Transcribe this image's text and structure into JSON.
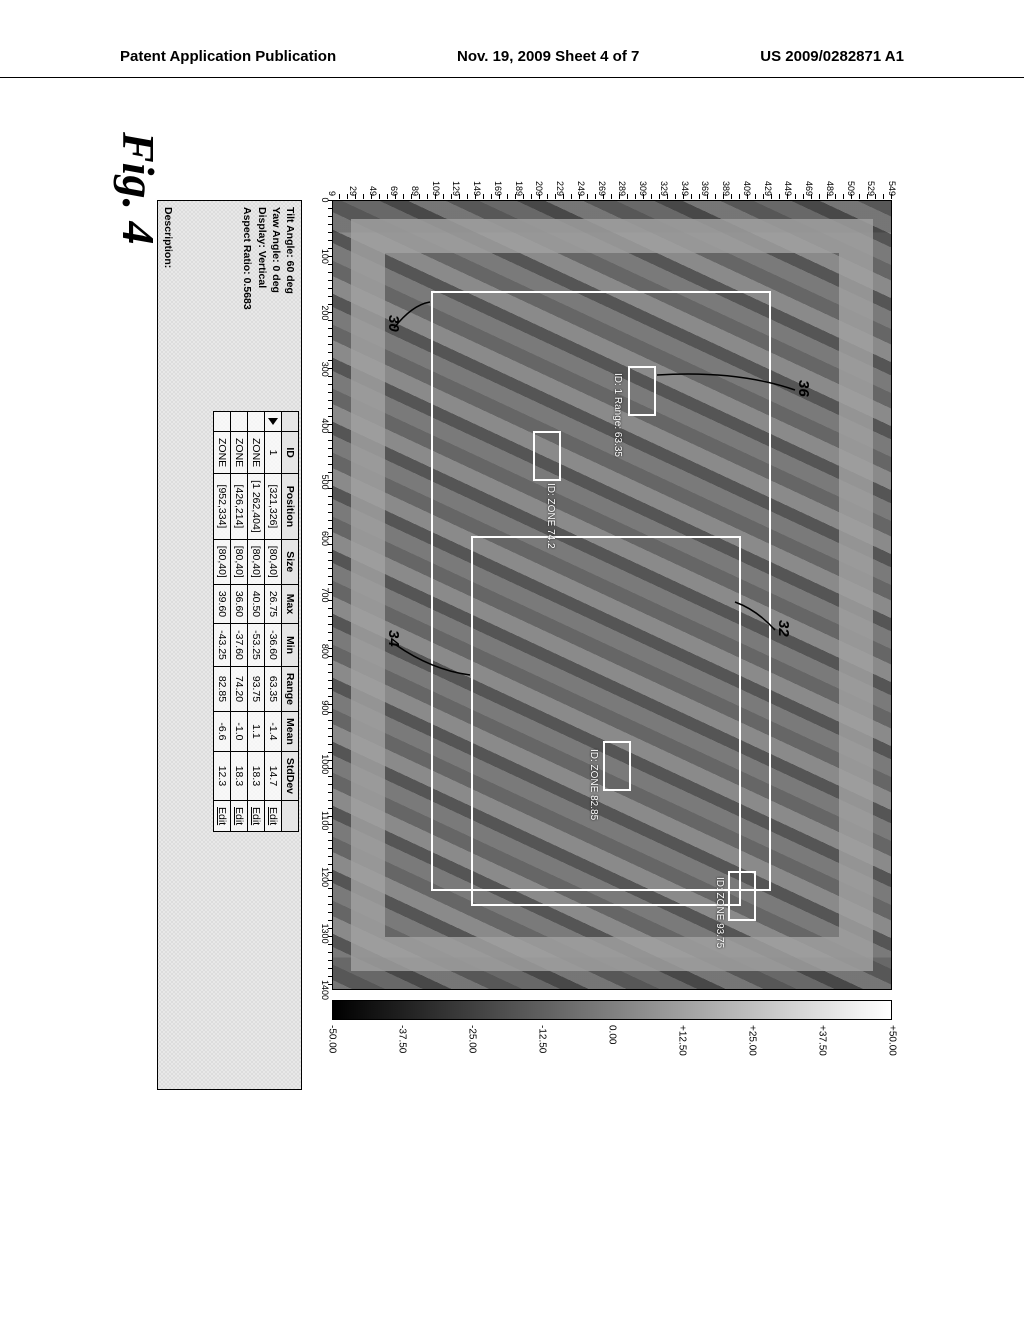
{
  "header": {
    "left": "Patent Application Publication",
    "center": "Nov. 19, 2009  Sheet 4 of 7",
    "right": "US 2009/0282871 A1"
  },
  "figure_label": "Fig. 4",
  "chart": {
    "y_ticks": [
      549,
      529,
      509,
      489,
      469,
      449,
      429,
      409,
      389,
      369,
      349,
      329,
      309,
      289,
      269,
      249,
      229,
      209,
      189,
      169,
      149,
      129,
      109,
      89,
      69,
      49,
      29,
      9
    ],
    "x_ticks": [
      0,
      100,
      200,
      300,
      400,
      500,
      600,
      700,
      800,
      900,
      1000,
      1100,
      1200,
      1300,
      1400
    ],
    "colorbar": [
      "+50.00",
      "+37.50",
      "+25.00",
      "+12.50",
      "0.00",
      "-12.50",
      "-25.00",
      "-37.50",
      "-50.00"
    ],
    "callouts": {
      "c30": "30",
      "c32": "32",
      "c34": "34",
      "c36": "36"
    },
    "zones": {
      "z30": {
        "label": ""
      },
      "z1": {
        "label": "ID: 1\nRange: 63.35"
      },
      "zoneA": {
        "label": "ID: ZONE\n74.2"
      },
      "zoneB": {
        "label": "ID: ZONE\n82.85"
      },
      "zoneC": {
        "label": "ID: ZONE\n93.75"
      }
    }
  },
  "info": {
    "tilt": "Tilt Angle: 60 deg",
    "yaw": "Yaw Angle: 0 deg",
    "display": "Display: Vertical",
    "aspect": "Aspect Ratio: 0.5683",
    "desc_label": "Description:"
  },
  "table": {
    "headers": [
      "",
      "ID",
      "Position",
      "Size",
      "Max",
      "Min",
      "Range",
      "Mean",
      "StdDev",
      ""
    ],
    "rows": [
      [
        "▶",
        "1",
        "[321,326]",
        "[80,40]",
        "26.75",
        "-36.60",
        "63.35",
        "-1.4",
        "14.7",
        "Edit"
      ],
      [
        "",
        "ZONE",
        "[1 262,404]",
        "[80,40]",
        "40.50",
        "-53.25",
        "93.75",
        "1.1",
        "18.3",
        "Edit"
      ],
      [
        "",
        "ZONE",
        "[426,214]",
        "[80,40]",
        "36.60",
        "-37.60",
        "74.20",
        "-1.0",
        "18.3",
        "Edit"
      ],
      [
        "",
        "ZONE",
        "[952,334]",
        "[80,40]",
        "39.60",
        "-43.25",
        "82.85",
        "-6.6",
        "12.3",
        "Edit"
      ]
    ]
  }
}
